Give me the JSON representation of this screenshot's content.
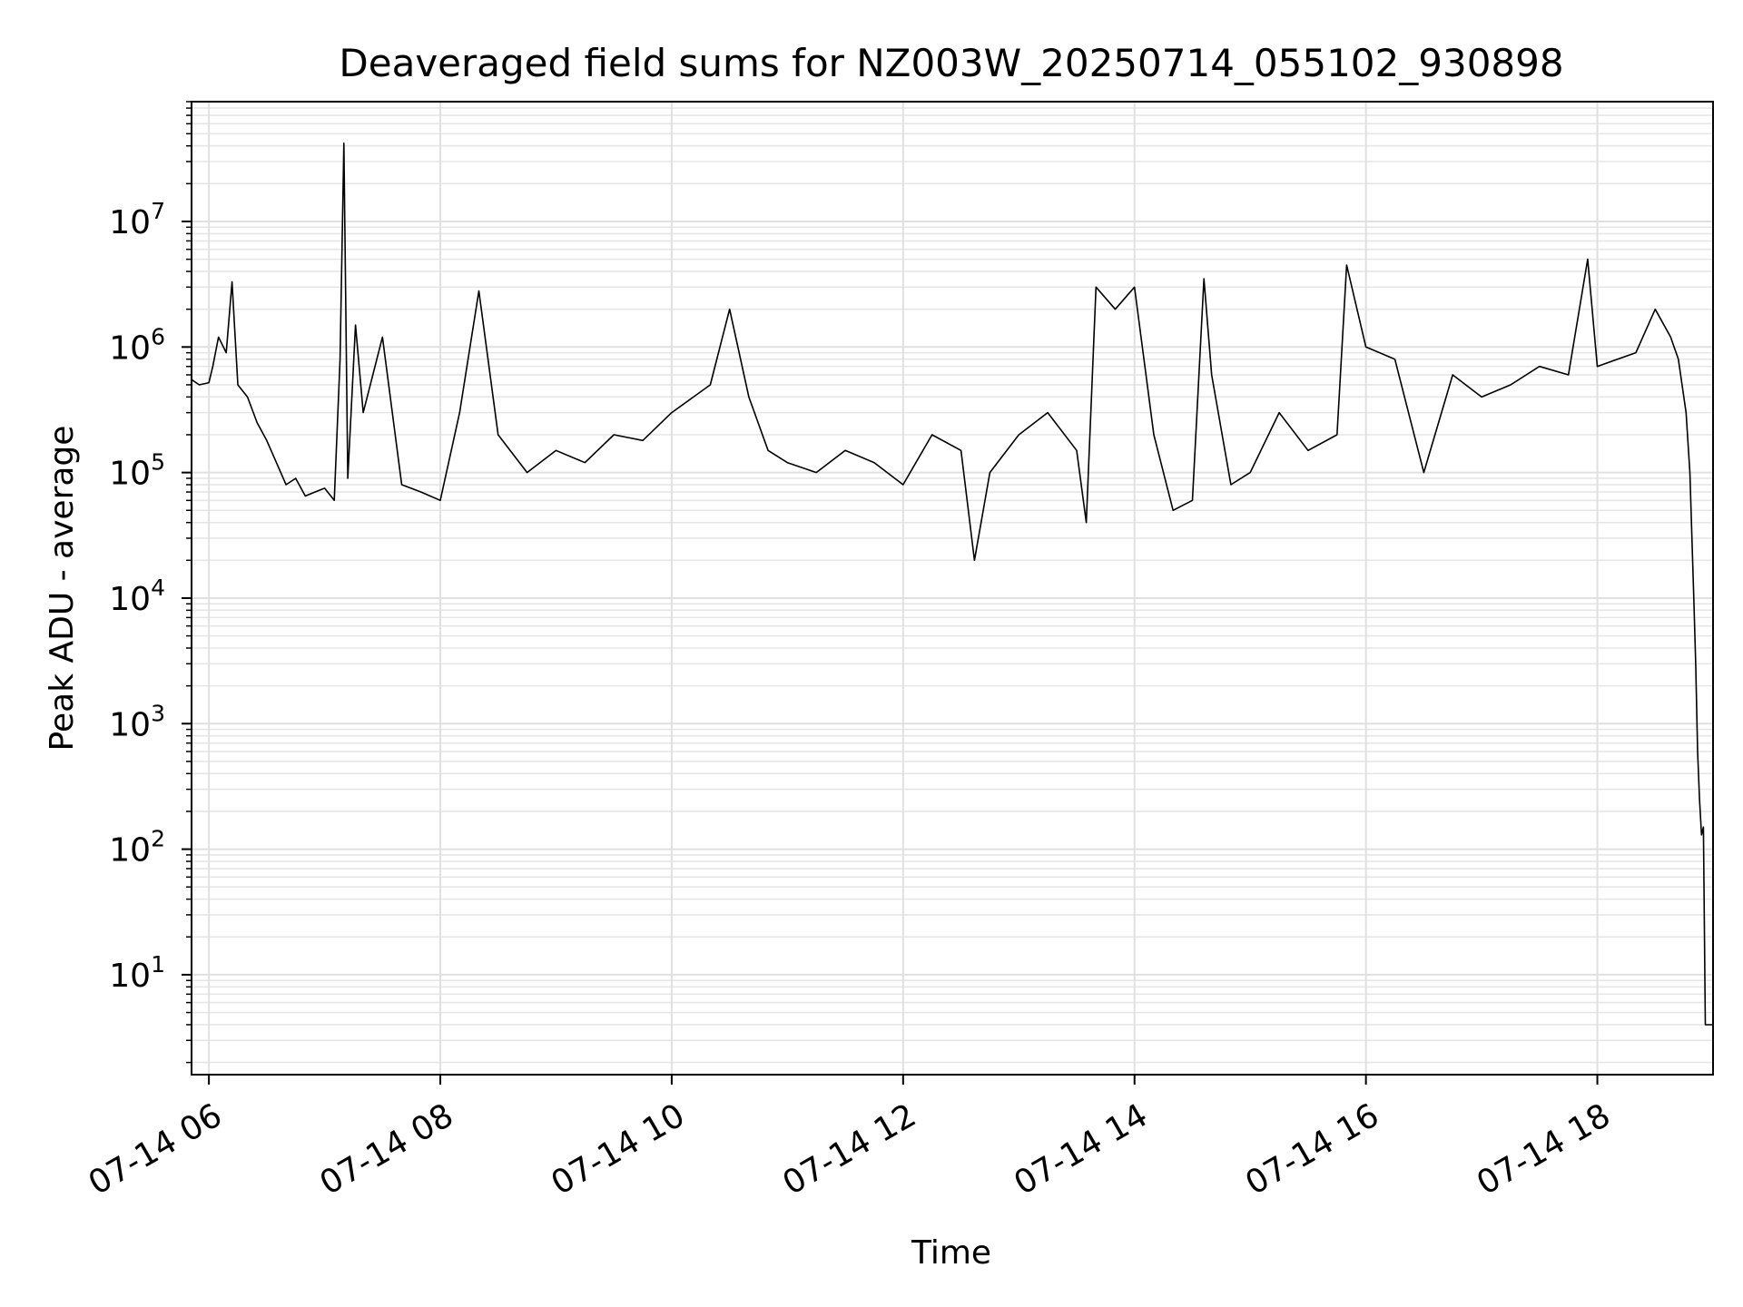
{
  "chart_data": {
    "type": "line",
    "title": "Deaveraged field sums for NZ003W_20250714_055102_930898",
    "xlabel": "Time",
    "ylabel": "Peak ADU - average",
    "yscale": "log",
    "grid": true,
    "xlim": [
      "2025-07-14 05:51",
      "2025-07-14 19:00"
    ],
    "ylim": [
      1.6,
      90000000
    ],
    "x_ticks": [
      {
        "value": "2025-07-14 06:00",
        "label": "07-14 06"
      },
      {
        "value": "2025-07-14 08:00",
        "label": "07-14 08"
      },
      {
        "value": "2025-07-14 10:00",
        "label": "07-14 10"
      },
      {
        "value": "2025-07-14 12:00",
        "label": "07-14 12"
      },
      {
        "value": "2025-07-14 14:00",
        "label": "07-14 14"
      },
      {
        "value": "2025-07-14 16:00",
        "label": "07-14 16"
      },
      {
        "value": "2025-07-14 18:00",
        "label": "07-14 18"
      }
    ],
    "y_ticks": [
      {
        "value": 10,
        "base": "10",
        "exp": "1"
      },
      {
        "value": 100,
        "base": "10",
        "exp": "2"
      },
      {
        "value": 1000,
        "base": "10",
        "exp": "3"
      },
      {
        "value": 10000,
        "base": "10",
        "exp": "4"
      },
      {
        "value": 100000,
        "base": "10",
        "exp": "5"
      },
      {
        "value": 1000000,
        "base": "10",
        "exp": "6"
      },
      {
        "value": 10000000,
        "base": "10",
        "exp": "7"
      }
    ],
    "series": [
      {
        "color": "#000000",
        "points": [
          [
            "2025-07-14 05:51",
            550000
          ],
          [
            "2025-07-14 05:55",
            500000
          ],
          [
            "2025-07-14 06:00",
            520000
          ],
          [
            "2025-07-14 06:02",
            700000
          ],
          [
            "2025-07-14 06:05",
            1200000
          ],
          [
            "2025-07-14 06:09",
            900000
          ],
          [
            "2025-07-14 06:12",
            3300000
          ],
          [
            "2025-07-14 06:15",
            500000
          ],
          [
            "2025-07-14 06:20",
            400000
          ],
          [
            "2025-07-14 06:25",
            250000
          ],
          [
            "2025-07-14 06:30",
            180000
          ],
          [
            "2025-07-14 06:35",
            120000
          ],
          [
            "2025-07-14 06:40",
            80000
          ],
          [
            "2025-07-14 06:45",
            90000
          ],
          [
            "2025-07-14 06:50",
            65000
          ],
          [
            "2025-07-14 06:55",
            70000
          ],
          [
            "2025-07-14 07:00",
            75000
          ],
          [
            "2025-07-14 07:05",
            60000
          ],
          [
            "2025-07-14 07:08",
            800000
          ],
          [
            "2025-07-14 07:10",
            42000000
          ],
          [
            "2025-07-14 07:12",
            90000
          ],
          [
            "2025-07-14 07:16",
            1500000
          ],
          [
            "2025-07-14 07:20",
            300000
          ],
          [
            "2025-07-14 07:30",
            1200000
          ],
          [
            "2025-07-14 07:40",
            80000
          ],
          [
            "2025-07-14 07:50",
            70000
          ],
          [
            "2025-07-14 08:00",
            60000
          ],
          [
            "2025-07-14 08:10",
            300000
          ],
          [
            "2025-07-14 08:20",
            2800000
          ],
          [
            "2025-07-14 08:30",
            200000
          ],
          [
            "2025-07-14 08:45",
            100000
          ],
          [
            "2025-07-14 09:00",
            150000
          ],
          [
            "2025-07-14 09:15",
            120000
          ],
          [
            "2025-07-14 09:30",
            200000
          ],
          [
            "2025-07-14 09:45",
            180000
          ],
          [
            "2025-07-14 10:00",
            300000
          ],
          [
            "2025-07-14 10:20",
            500000
          ],
          [
            "2025-07-14 10:30",
            2000000
          ],
          [
            "2025-07-14 10:40",
            400000
          ],
          [
            "2025-07-14 10:50",
            150000
          ],
          [
            "2025-07-14 11:00",
            120000
          ],
          [
            "2025-07-14 11:15",
            100000
          ],
          [
            "2025-07-14 11:30",
            150000
          ],
          [
            "2025-07-14 11:45",
            120000
          ],
          [
            "2025-07-14 12:00",
            80000
          ],
          [
            "2025-07-14 12:15",
            200000
          ],
          [
            "2025-07-14 12:30",
            150000
          ],
          [
            "2025-07-14 12:37",
            20000
          ],
          [
            "2025-07-14 12:45",
            100000
          ],
          [
            "2025-07-14 13:00",
            200000
          ],
          [
            "2025-07-14 13:15",
            300000
          ],
          [
            "2025-07-14 13:30",
            150000
          ],
          [
            "2025-07-14 13:35",
            40000
          ],
          [
            "2025-07-14 13:40",
            3000000
          ],
          [
            "2025-07-14 13:50",
            2000000
          ],
          [
            "2025-07-14 14:00",
            3000000
          ],
          [
            "2025-07-14 14:10",
            200000
          ],
          [
            "2025-07-14 14:20",
            50000
          ],
          [
            "2025-07-14 14:30",
            60000
          ],
          [
            "2025-07-14 14:36",
            3500000
          ],
          [
            "2025-07-14 14:40",
            600000
          ],
          [
            "2025-07-14 14:50",
            80000
          ],
          [
            "2025-07-14 15:00",
            100000
          ],
          [
            "2025-07-14 15:15",
            300000
          ],
          [
            "2025-07-14 15:30",
            150000
          ],
          [
            "2025-07-14 15:45",
            200000
          ],
          [
            "2025-07-14 15:50",
            4500000
          ],
          [
            "2025-07-14 16:00",
            1000000
          ],
          [
            "2025-07-14 16:15",
            800000
          ],
          [
            "2025-07-14 16:30",
            100000
          ],
          [
            "2025-07-14 16:45",
            600000
          ],
          [
            "2025-07-14 17:00",
            400000
          ],
          [
            "2025-07-14 17:15",
            500000
          ],
          [
            "2025-07-14 17:30",
            700000
          ],
          [
            "2025-07-14 17:45",
            600000
          ],
          [
            "2025-07-14 17:55",
            5000000
          ],
          [
            "2025-07-14 18:00",
            700000
          ],
          [
            "2025-07-14 18:20",
            900000
          ],
          [
            "2025-07-14 18:30",
            2000000
          ],
          [
            "2025-07-14 18:38",
            1200000
          ],
          [
            "2025-07-14 18:42",
            800000
          ],
          [
            "2025-07-14 18:46",
            300000
          ],
          [
            "2025-07-14 18:48",
            100000
          ],
          [
            "2025-07-14 18:50",
            10000
          ],
          [
            "2025-07-14 18:51",
            3000
          ],
          [
            "2025-07-14 18:52",
            600
          ],
          [
            "2025-07-14 18:53",
            250
          ],
          [
            "2025-07-14 18:54",
            130
          ],
          [
            "2025-07-14 18:55",
            150
          ],
          [
            "2025-07-14 18:56",
            4
          ],
          [
            "2025-07-14 19:00",
            4
          ]
        ]
      }
    ]
  }
}
